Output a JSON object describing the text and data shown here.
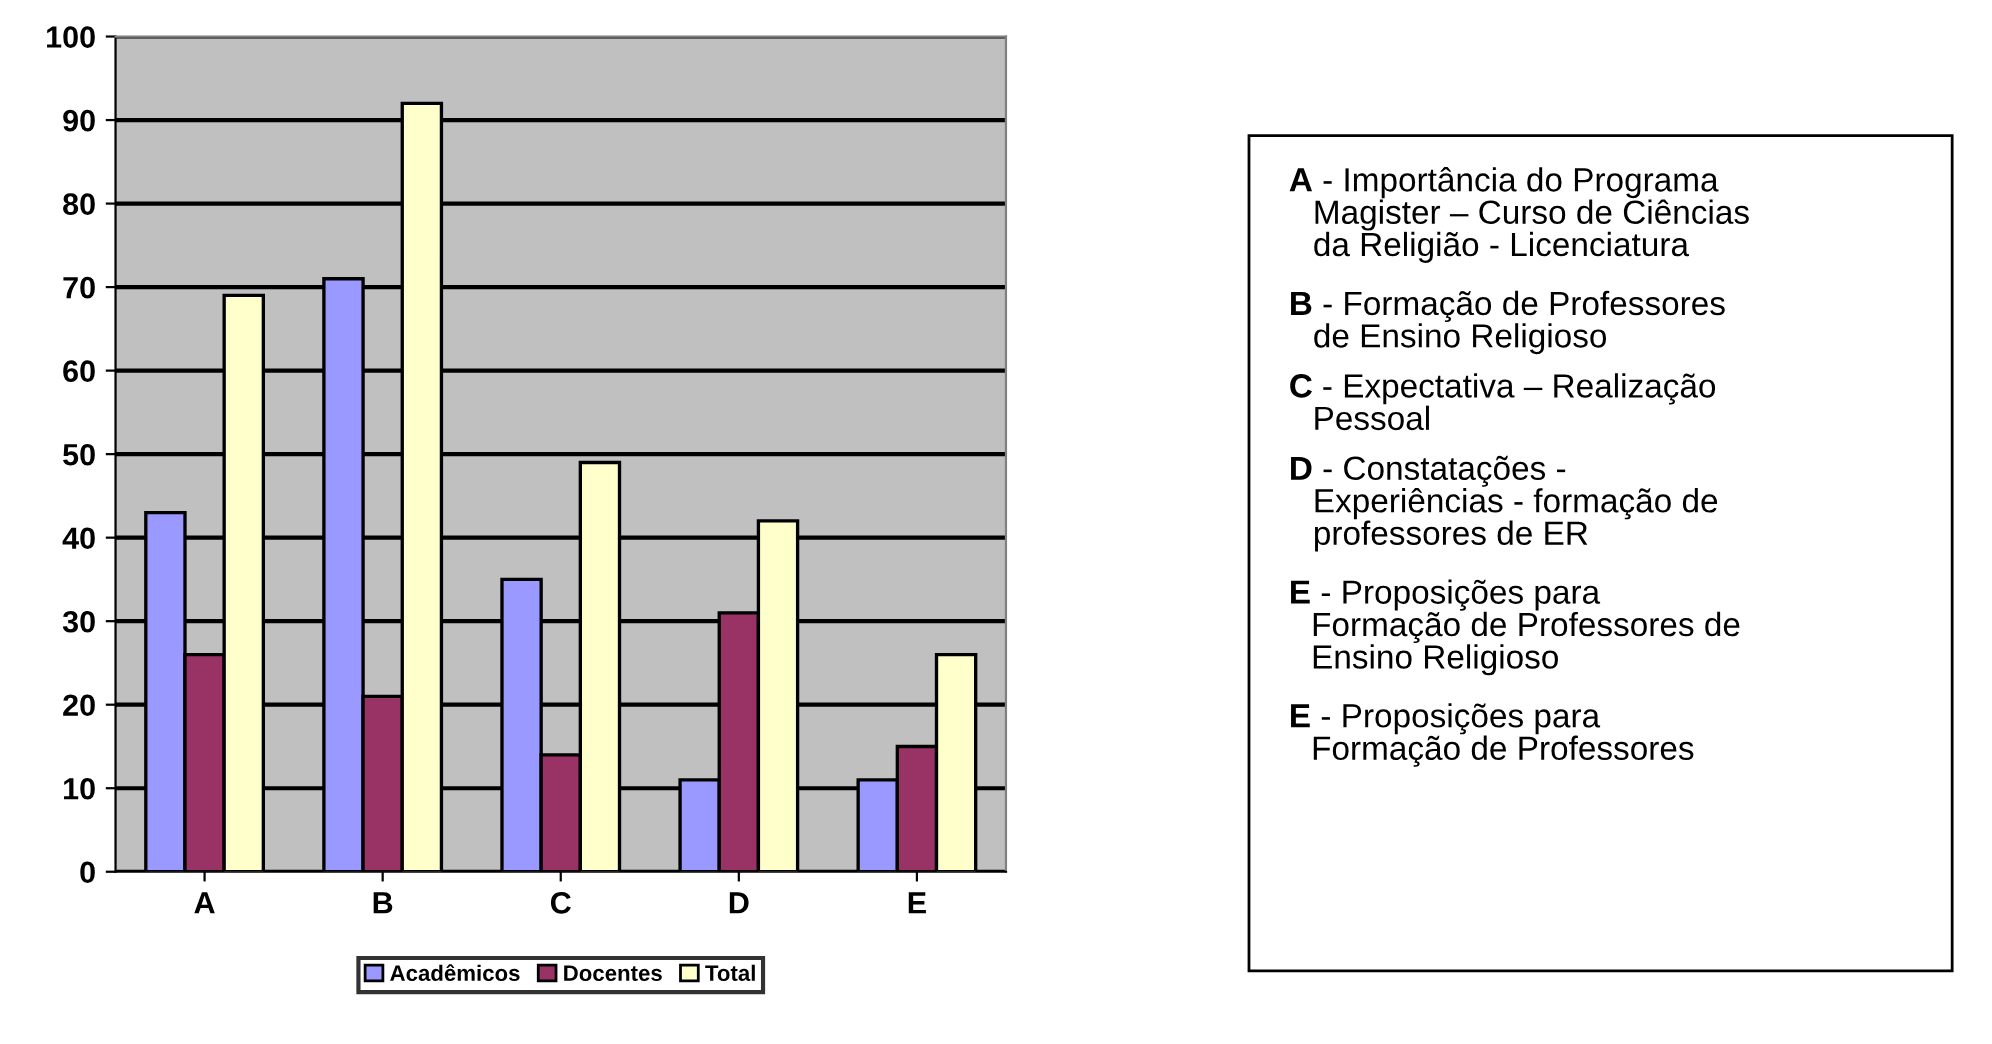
{
  "chart_data": {
    "type": "bar",
    "categories": [
      "A",
      "B",
      "C",
      "D",
      "E"
    ],
    "series": [
      {
        "name": "Acadêmicos",
        "color": "#9999ff",
        "values": [
          43,
          71,
          35,
          11,
          11
        ]
      },
      {
        "name": "Docentes",
        "color": "#993366",
        "values": [
          26,
          21,
          14,
          31,
          15
        ]
      },
      {
        "name": "Total",
        "color": "#ffffcc",
        "values": [
          69,
          92,
          49,
          42,
          26
        ]
      }
    ],
    "ylim": [
      0,
      100
    ],
    "yticks": [
      0,
      10,
      20,
      30,
      40,
      50,
      60,
      70,
      80,
      90,
      100
    ],
    "grid": "y",
    "legend": "bottom",
    "annotations": [
      "A - Importância do Programa\nMagister – Curso de Ciências\nda Religião - Licenciatura",
      "B - Formação de Professores\nde Ensino Religioso",
      "C - Expectativa – Realização\nPessoal",
      "D - Constatações -\nExperiências - formação de\nprofessores de ER",
      "E - Proposições para\nFormação de Professores de\nEnsino Religioso",
      "E - Proposições para\nFormação de Professores"
    ]
  }
}
